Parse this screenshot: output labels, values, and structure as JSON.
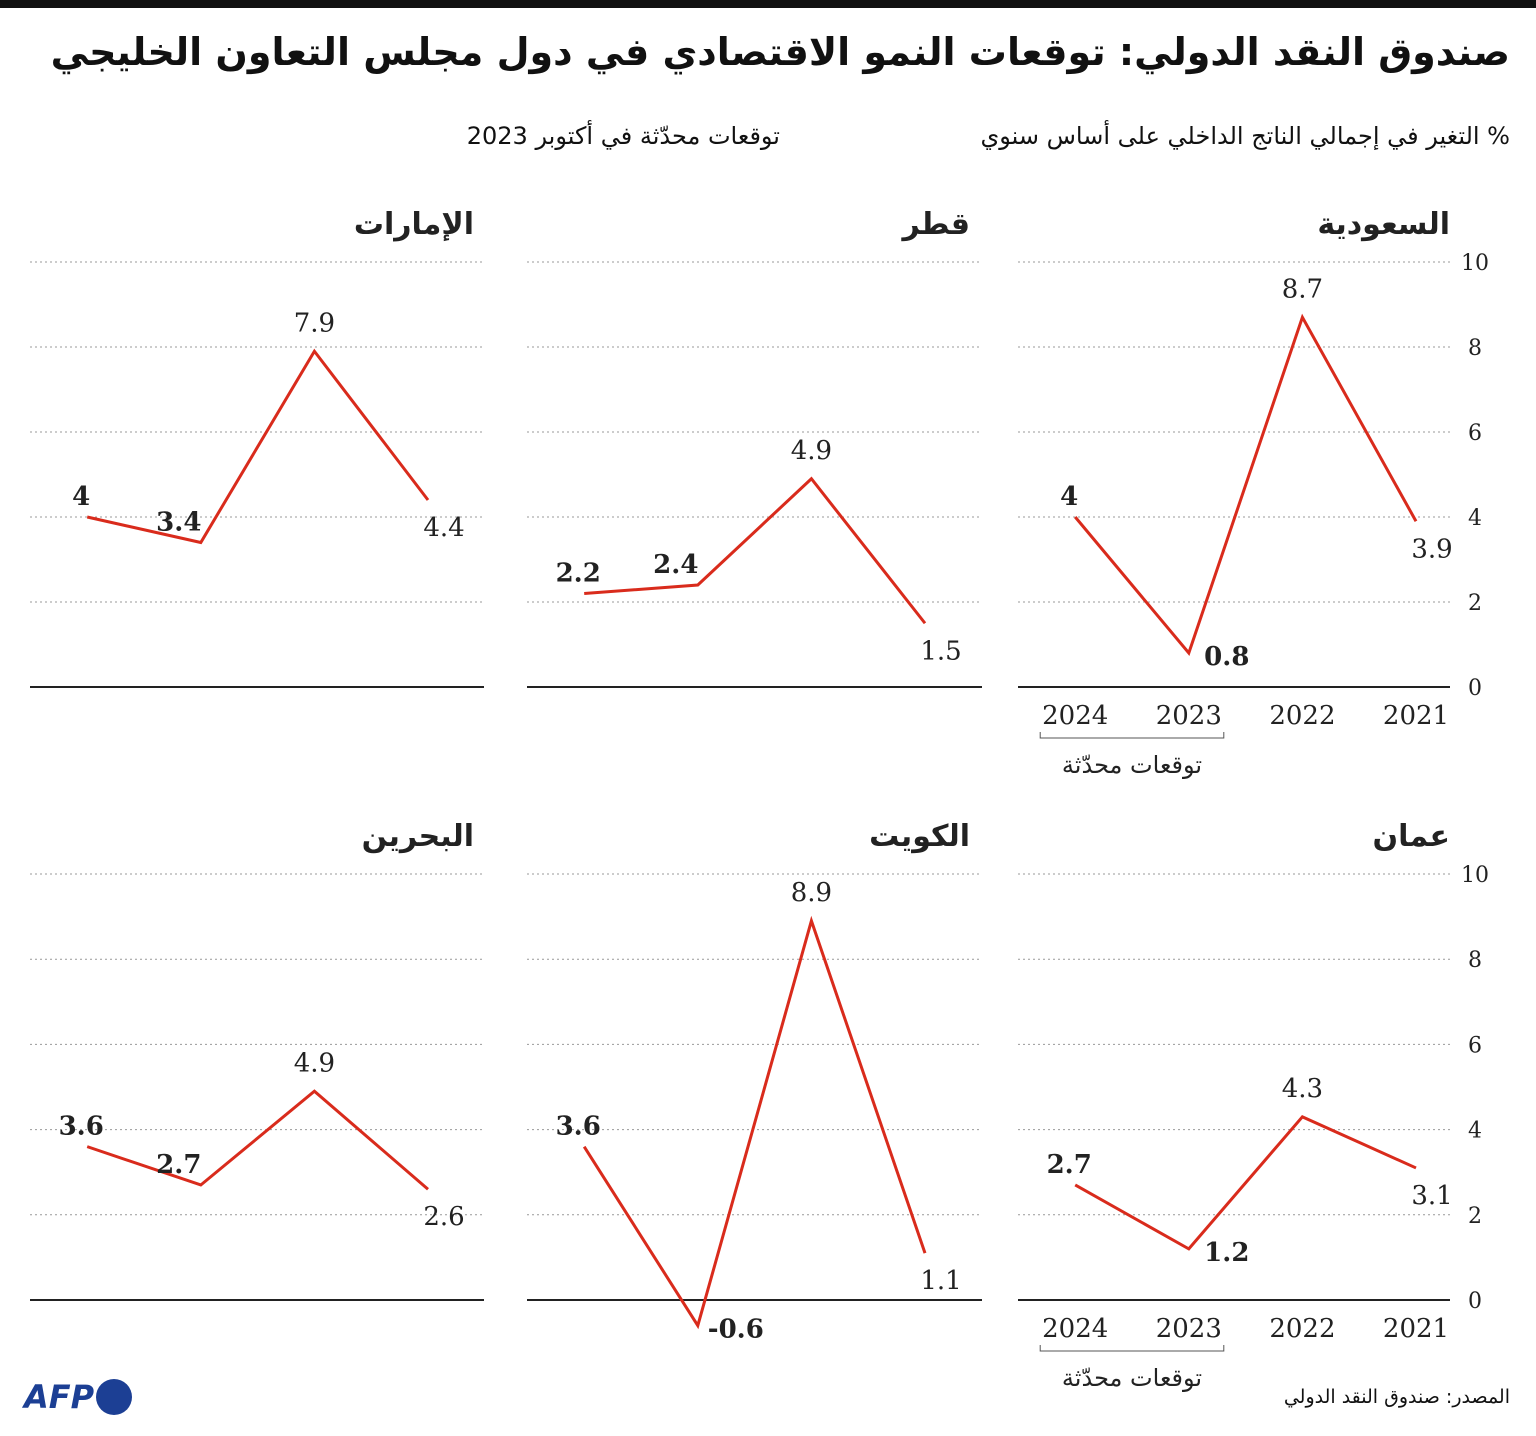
{
  "chart_data": {
    "type": "line",
    "title": "صندوق النقد الدولي: توقعات النمو الاقتصادي في دول مجلس التعاون الخليجي",
    "subtitle": "% التغير في إجمالي الناتج الداخلي على أساس سنوي",
    "note": "توقعات محدّثة في أكتوبر 2023",
    "annotation": "توقعات محدّثة",
    "source": "المصدر: صندوق النقد الدولي",
    "credit": "AFP",
    "categories": [
      "2021",
      "2022",
      "2023",
      "2024"
    ],
    "ylim": [
      0,
      10
    ],
    "yticks": [
      0,
      2,
      4,
      6,
      8,
      10
    ],
    "grid": true,
    "series": [
      {
        "name": "السعودية",
        "color": "#d92b1c",
        "values": [
          3.9,
          8.7,
          0.8,
          4
        ]
      },
      {
        "name": "قطر",
        "color": "#d92b1c",
        "values": [
          1.5,
          4.9,
          2.4,
          2.2
        ]
      },
      {
        "name": "الإمارات",
        "color": "#d92b1c",
        "values": [
          4.4,
          7.9,
          3.4,
          4
        ]
      },
      {
        "name": "عمان",
        "color": "#d92b1c",
        "values": [
          3.1,
          4.3,
          1.2,
          2.7
        ]
      },
      {
        "name": "الكويت",
        "color": "#d92b1c",
        "values": [
          1.1,
          8.9,
          -0.6,
          3.6
        ]
      },
      {
        "name": "البحرين",
        "color": "#d92b1c",
        "values": [
          2.6,
          4.9,
          2.7,
          3.6
        ]
      }
    ]
  }
}
